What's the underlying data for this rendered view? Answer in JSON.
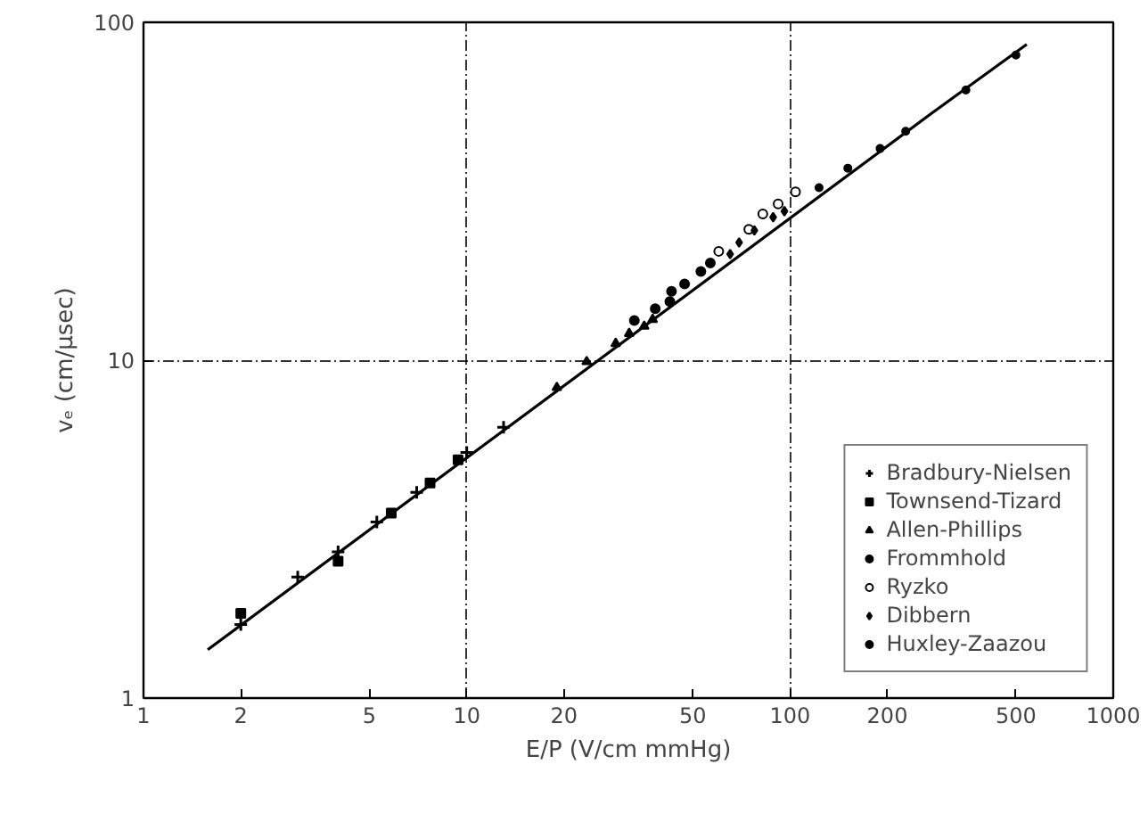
{
  "chart_data": {
    "type": "scatter",
    "xlabel": "E/P (V/cm mmHg)",
    "ylabel": "vₑ (cm/μsec)",
    "log": "xy",
    "grid": true,
    "legend": "bottom right",
    "xlim": [
      1,
      1000
    ],
    "ylim": [
      1,
      100
    ],
    "xticks": [
      1,
      2,
      5,
      10,
      20,
      50,
      100,
      200,
      500,
      1000
    ],
    "yticks": [
      1,
      10,
      100
    ],
    "series": [
      {
        "name": "Bradbury-Nielsen",
        "color": "#000000",
        "marker": "cross",
        "x": [
          2,
          3,
          4,
          5.27,
          7,
          10,
          13
        ],
        "values": [
          1.65,
          2.28,
          2.71,
          3.32,
          4.06,
          5.33,
          6.33
        ]
      },
      {
        "name": "Townsend-Tizard",
        "color": "#000000",
        "marker": "square",
        "x": [
          2,
          4,
          5.84,
          7.7,
          9.4
        ],
        "values": [
          1.78,
          2.54,
          3.53,
          4.33,
          5.07
        ]
      },
      {
        "name": "Allen-Phillips",
        "color": "#000000",
        "marker": "triangle",
        "x": [
          19,
          23.5,
          28.9,
          31.8,
          35.4,
          37.6
        ],
        "values": [
          8.3,
          9.9,
          11.2,
          12.0,
          12.6,
          13.2
        ]
      },
      {
        "name": "Frommhold",
        "color": "#000000",
        "marker": "circle",
        "x": [
          33,
          38.3,
          42.5,
          43,
          47.2,
          53,
          56.7
        ],
        "values": [
          13.1,
          14.2,
          14.9,
          16.0,
          16.8,
          18.3,
          19.4
        ]
      },
      {
        "name": "Ryzko",
        "color": "#000000",
        "marker": "circle_open",
        "x": [
          60.2,
          74.6,
          82.4,
          91.9,
          104
        ],
        "values": [
          21.0,
          24.4,
          27.1,
          29.0,
          31.5
        ]
      },
      {
        "name": "Dibbern",
        "color": "#000000",
        "marker": "diamond",
        "x": [
          65.3,
          69.6,
          77.6,
          88.7,
          96.1
        ],
        "values": [
          20.6,
          22.3,
          24.2,
          26.5,
          27.6
        ]
      },
      {
        "name": "Huxley-Zaazou",
        "color": "#000000",
        "marker": "dot",
        "x": [
          123,
          151,
          190,
          228,
          350,
          500
        ],
        "values": [
          32.4,
          37.0,
          42.3,
          47.6,
          63,
          80
        ]
      },
      {
        "type": "line",
        "color": "#000000",
        "line_style": "solid",
        "x": [
          1.58,
          275,
          540
        ],
        "values": [
          1.39,
          53.9,
          86
        ]
      }
    ]
  }
}
